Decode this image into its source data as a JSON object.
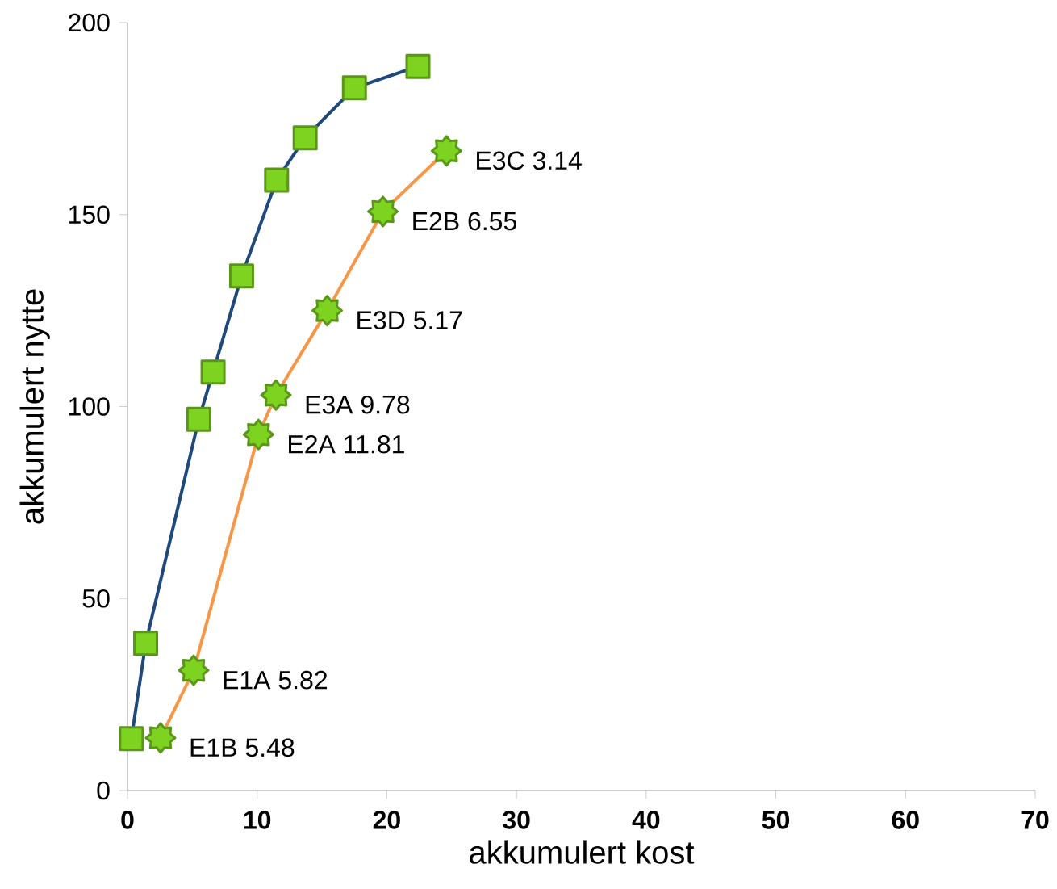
{
  "chart_data": {
    "type": "line",
    "xlabel": "akkumulert kost",
    "ylabel": "akkumulert nytte",
    "xlim": [
      0,
      70
    ],
    "ylim": [
      0,
      200
    ],
    "xticks": [
      0,
      10,
      20,
      30,
      40,
      50,
      60,
      70
    ],
    "yticks": [
      0,
      50,
      100,
      150,
      200
    ],
    "grid": false,
    "series": [
      {
        "color": "#1f497d",
        "marker": "square",
        "x": [
          0.3,
          1.4,
          5.5,
          6.6,
          8.8,
          11.5,
          13.7,
          17.5,
          22.4
        ],
        "values": [
          13.5,
          38.3,
          96.7,
          109,
          134,
          159,
          170,
          183,
          188.6
        ]
      },
      {
        "color": "#f79646",
        "marker": "star",
        "x": [
          2.55,
          5.1,
          10.1,
          11.45,
          15.4,
          19.7,
          24.6
        ],
        "values": [
          13.7,
          31.3,
          92.7,
          103,
          125,
          150.8,
          166.6
        ]
      }
    ],
    "annotations": [
      {
        "text": "E1B 5.48",
        "x": 2.55,
        "y": 13.7
      },
      {
        "text": "E1A 5.82",
        "x": 5.1,
        "y": 31.3
      },
      {
        "text": "E2A 11.81",
        "x": 10.1,
        "y": 92.7
      },
      {
        "text": "E3A 9.78",
        "x": 11.45,
        "y": 103
      },
      {
        "text": "E3D 5.17",
        "x": 15.4,
        "y": 125
      },
      {
        "text": "E2B 6.55",
        "x": 19.7,
        "y": 150.8
      },
      {
        "text": "E3C 3.14",
        "x": 24.6,
        "y": 166.6
      }
    ]
  }
}
